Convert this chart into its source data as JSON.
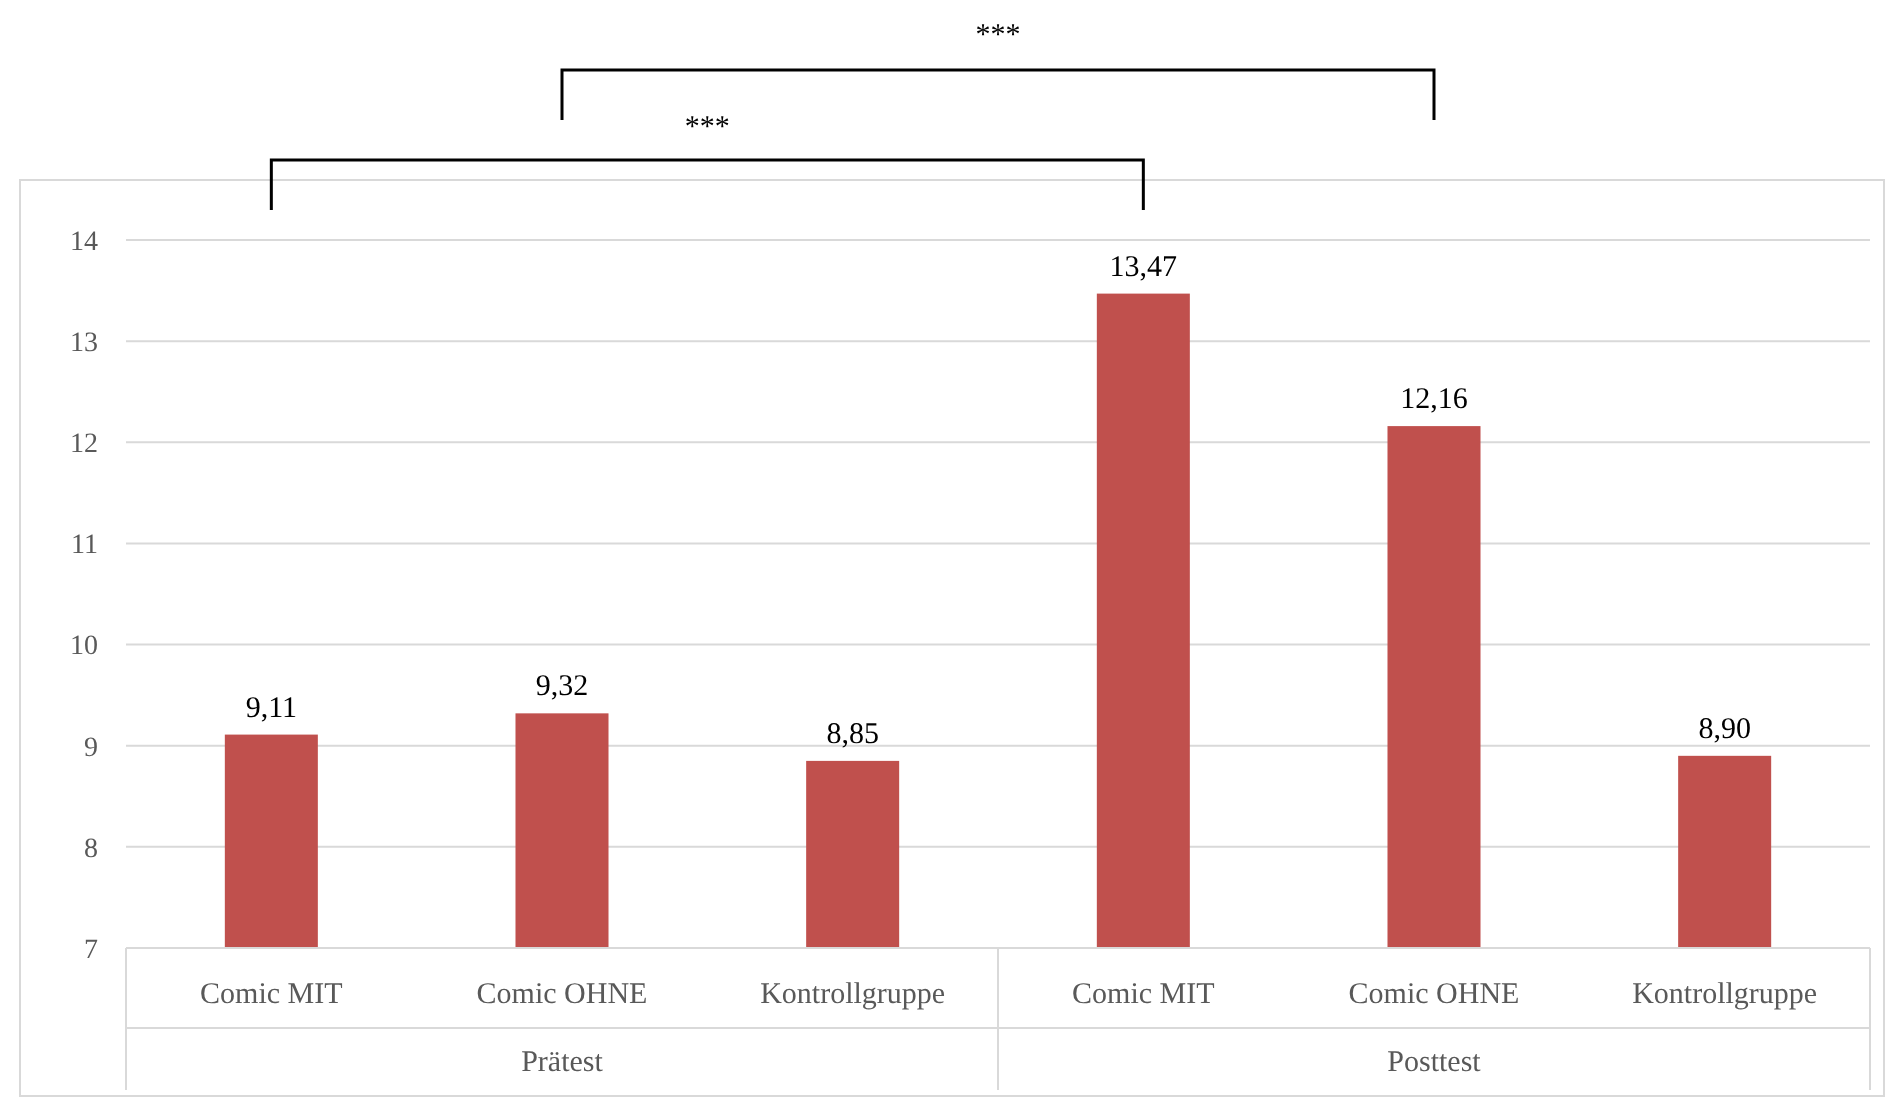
{
  "chart_data": {
    "type": "bar",
    "categories": [
      "Comic MIT",
      "Comic OHNE",
      "Kontrollgruppe",
      "Comic MIT",
      "Comic OHNE",
      "Kontrollgruppe"
    ],
    "values": [
      9.11,
      9.32,
      8.85,
      13.47,
      12.16,
      8.9
    ],
    "value_labels": [
      "9,11",
      "9,32",
      "8,85",
      "13,47",
      "12,16",
      "8,90"
    ],
    "color": "#c0504d",
    "ylim": [
      7,
      14
    ],
    "yticks": [
      7,
      8,
      9,
      10,
      11,
      12,
      13,
      14
    ],
    "grid": "y",
    "annotations": [
      "***",
      "***",
      "Prätest",
      "Posttest"
    ]
  }
}
